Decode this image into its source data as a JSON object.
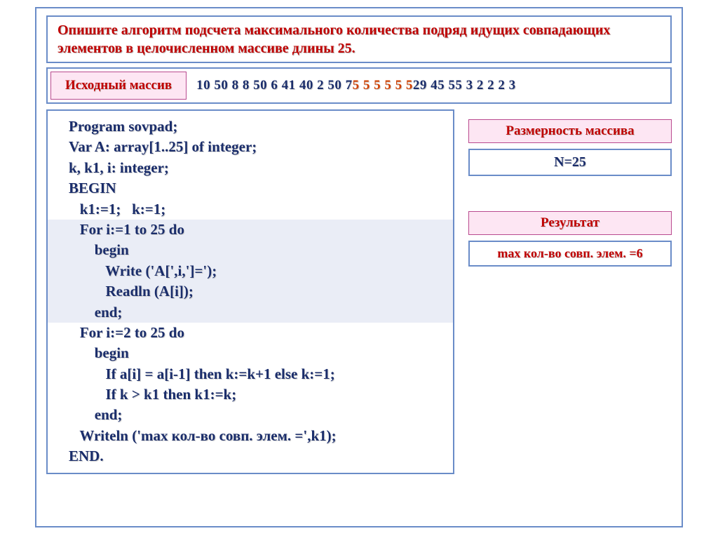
{
  "task": "Опишите алгоритм подсчета максимального количества подряд идущих совпадающих элементов в целочисленном массиве длины 25.",
  "input_array": {
    "label": "Исходный массив",
    "plain_prefix": "10  50  8  8  50  6  41  40  2  50 7  ",
    "highlight": "5  5  5  5  5  5",
    "plain_suffix": "  29  45  55  3   2   2   2  3"
  },
  "code": {
    "l01": "Program sovpad;",
    "l02": "Var A: array[1..25] of integer;",
    "l03": "k, k1, i: integer;",
    "l04": "BEGIN",
    "l05": "   k1:=1;   k:=1;",
    "l06": "   For i:=1 to 25 do",
    "l07": "       begin",
    "l08": "          Write ('A[',i,']=');",
    "l09": "          Readln (A[i]);",
    "l10": "       end;",
    "l11": "   For i:=2 to 25 do",
    "l12": "       begin",
    "l13": "          If a[i] = a[i-1] then k:=k+1 else k:=1;",
    "l14": "          If k > k1 then k1:=k;",
    "l15": "       end;",
    "l16": "   Writeln ('max кол-во совп. элем. =',k1);",
    "l17": "END."
  },
  "side": {
    "dim_label": "Размерность массива",
    "dim_value": "N=25",
    "res_label": "Результат",
    "res_value": "max кол-во совп. элем. =6"
  },
  "colors": {
    "border": "#6a8cc8",
    "pink_bg": "#fde6f3",
    "pink_border": "#b94a8f",
    "red_text": "#c00000",
    "navy_text": "#1a2d6b",
    "highlight_text": "#d04000",
    "code_hl_bg": "#eaedf6"
  }
}
